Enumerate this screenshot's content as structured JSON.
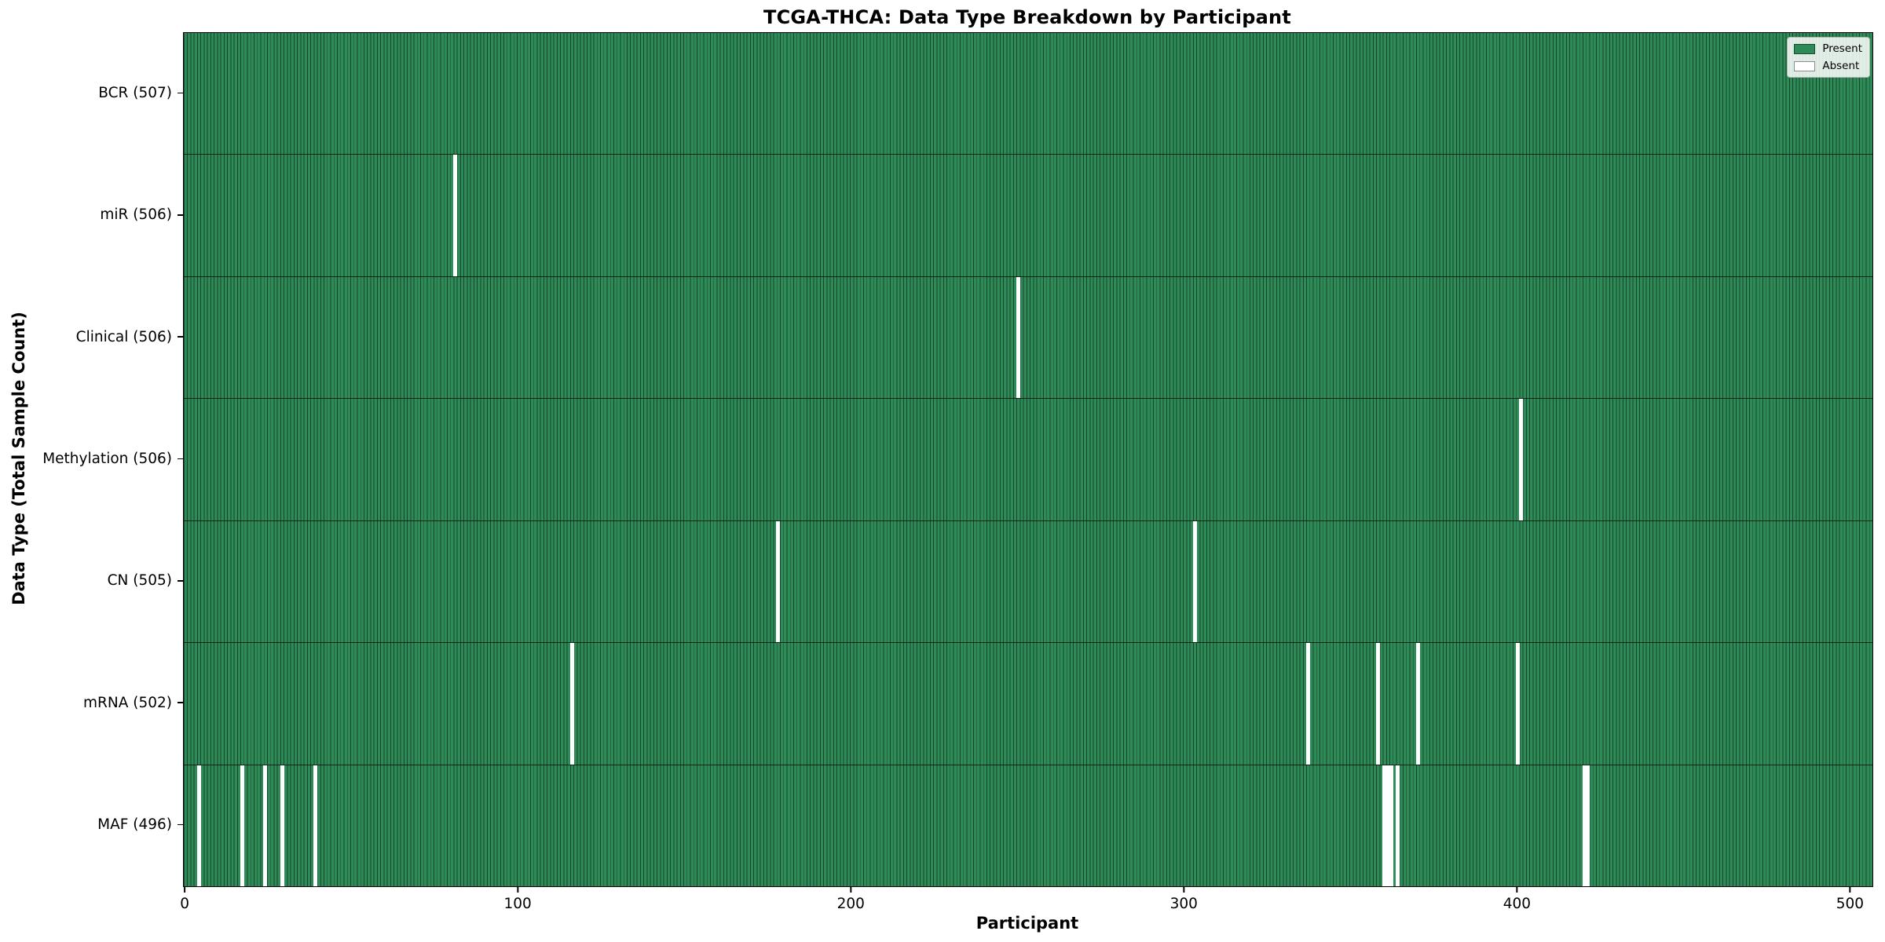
{
  "title": "TCGA-THCA: Data Type Breakdown by Participant",
  "xlabel": "Participant",
  "ylabel": "Data Type (Total Sample Count)",
  "colors": {
    "present": "#2e8b57",
    "absent": "#ffffff",
    "bar_edge": "rgba(0,0,0,0.5)",
    "row_divider": "rgba(0,0,0,0.72)"
  },
  "legend": [
    {
      "label": "Present",
      "color": "#2e8b57"
    },
    {
      "label": "Absent",
      "color": "#ffffff"
    }
  ],
  "chart_data": {
    "type": "heatmap",
    "title": "TCGA-THCA: Data Type Breakdown by Participant",
    "xlabel": "Participant",
    "ylabel": "Data Type (Total Sample Count)",
    "legend_entries": [
      "Present",
      "Absent"
    ],
    "legend_position": "upper right",
    "grid": false,
    "x_range": [
      0,
      507
    ],
    "x_ticks": [
      0,
      100,
      200,
      300,
      400,
      500
    ],
    "total_participants": 507,
    "rows": [
      {
        "name": "BCR",
        "label": "BCR (507)",
        "present_count": 507,
        "absent_participants": []
      },
      {
        "name": "miR",
        "label": "miR (506)",
        "present_count": 506,
        "absent_participants": [
          81
        ]
      },
      {
        "name": "Clinical",
        "label": "Clinical (506)",
        "present_count": 506,
        "absent_participants": [
          250
        ]
      },
      {
        "name": "Methylation",
        "label": "Methylation (506)",
        "present_count": 506,
        "absent_participants": [
          401
        ]
      },
      {
        "name": "CN",
        "label": "CN (505)",
        "present_count": 505,
        "absent_participants": [
          178,
          303
        ]
      },
      {
        "name": "mRNA",
        "label": "mRNA (502)",
        "present_count": 502,
        "absent_participants": [
          116,
          337,
          358,
          370,
          400
        ]
      },
      {
        "name": "MAF",
        "label": "MAF (496)",
        "present_count": 496,
        "absent_participants": [
          4,
          17,
          24,
          29,
          39,
          360,
          361,
          362,
          364,
          420,
          421
        ]
      }
    ]
  }
}
